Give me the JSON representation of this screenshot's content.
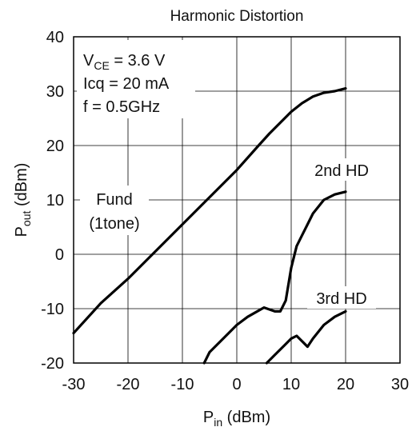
{
  "chart_data": {
    "type": "line",
    "title": "Harmonic Distortion",
    "xlabel": {
      "main": "P",
      "sub": "in",
      "suffix": " (dBm)"
    },
    "ylabel": {
      "main": "P",
      "sub": "out",
      "suffix": " (dBm)"
    },
    "xlim": [
      -30,
      30
    ],
    "ylim": [
      -20,
      40
    ],
    "x_ticks": [
      -30,
      -20,
      -10,
      0,
      10,
      20,
      30
    ],
    "y_ticks": [
      -20,
      -10,
      0,
      10,
      20,
      30,
      40
    ],
    "grid": true,
    "conditions": {
      "vce_main": "V",
      "vce_sub": "CE",
      "vce_rest": " = 3.6 V",
      "icq": "Icq = 20 mA",
      "freq": "f = 0.5GHz"
    },
    "series": [
      {
        "name": "Fund (1tone)",
        "label_lines": [
          "Fund",
          "(1tone)"
        ],
        "x": [
          -30,
          -25,
          -20,
          -15,
          -10,
          -5,
          0,
          4,
          6,
          8,
          10,
          12,
          14,
          16,
          18,
          20
        ],
        "y": [
          -14.5,
          -9,
          -4.5,
          0.5,
          5.5,
          10.5,
          15.5,
          20,
          22.2,
          24.2,
          26.2,
          27.8,
          29,
          29.7,
          30,
          30.5
        ]
      },
      {
        "name": "2nd HD",
        "label_lines": [
          "2nd HD"
        ],
        "x": [
          -6,
          -5,
          -2,
          0,
          2,
          5,
          7,
          8,
          9,
          10,
          11,
          12,
          14,
          16,
          18,
          20
        ],
        "y": [
          -20,
          -18,
          -15,
          -13,
          -11.5,
          -9.8,
          -10.5,
          -10.5,
          -8.5,
          -2.5,
          1.5,
          3.5,
          7.5,
          10,
          11,
          11.5
        ]
      },
      {
        "name": "3rd HD",
        "label_lines": [
          "3rd HD"
        ],
        "x": [
          5.5,
          7,
          9,
          10,
          11,
          12,
          13,
          14,
          16,
          18,
          20
        ],
        "y": [
          -20.5,
          -18.5,
          -16.5,
          -15.5,
          -15,
          -16,
          -17,
          -15.5,
          -13,
          -11.5,
          -10.5
        ]
      }
    ]
  }
}
